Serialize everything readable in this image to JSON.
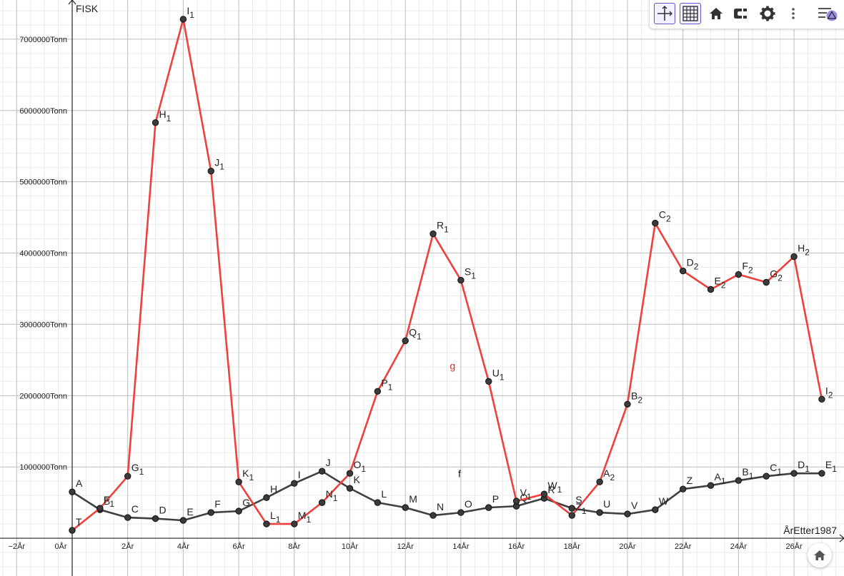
{
  "chart_data": {
    "type": "line",
    "xlabel": "ÅrEtter1987",
    "ylabel": "FISK",
    "xlim": [
      -2.6,
      27.8
    ],
    "ylim": [
      -530000,
      7550000
    ],
    "x_ticks": [
      -2,
      0,
      2,
      4,
      6,
      8,
      10,
      12,
      14,
      16,
      18,
      20,
      22,
      24,
      26
    ],
    "x_tick_labels": [
      "−2År",
      "0År",
      "2År",
      "4År",
      "6År",
      "8År",
      "10År",
      "12År",
      "14År",
      "16År",
      "18År",
      "20År",
      "22År",
      "24År",
      "26År"
    ],
    "y_ticks": [
      1000000,
      2000000,
      3000000,
      4000000,
      5000000,
      6000000,
      7000000
    ],
    "y_tick_labels": [
      "1000000Tonn",
      "2000000Tonn",
      "3000000Tonn",
      "4000000Tonn",
      "5000000Tonn",
      "6000000Tonn",
      "7000000Tonn"
    ],
    "grid": true,
    "series": [
      {
        "name": "f",
        "color": "#404040",
        "label_at": [
          13.9,
          855000
        ],
        "points": [
          {
            "label": "A",
            "sub": "",
            "x": 0,
            "y": 650000
          },
          {
            "label": "B",
            "sub": "",
            "x": 1,
            "y": 400000
          },
          {
            "label": "C",
            "sub": "",
            "x": 2,
            "y": 290000
          },
          {
            "label": "D",
            "sub": "",
            "x": 3,
            "y": 275000
          },
          {
            "label": "E",
            "sub": "",
            "x": 4,
            "y": 250000
          },
          {
            "label": "F",
            "sub": "",
            "x": 5,
            "y": 360000
          },
          {
            "label": "G",
            "sub": "",
            "x": 6,
            "y": 380000
          },
          {
            "label": "H",
            "sub": "",
            "x": 7,
            "y": 570000
          },
          {
            "label": "I",
            "sub": "",
            "x": 8,
            "y": 770000
          },
          {
            "label": "J",
            "sub": "",
            "x": 9,
            "y": 940000
          },
          {
            "label": "K",
            "sub": "",
            "x": 10,
            "y": 700000
          },
          {
            "label": "L",
            "sub": "",
            "x": 11,
            "y": 500000
          },
          {
            "label": "M",
            "sub": "",
            "x": 12,
            "y": 430000
          },
          {
            "label": "N",
            "sub": "",
            "x": 13,
            "y": 320000
          },
          {
            "label": "O",
            "sub": "",
            "x": 14,
            "y": 360000
          },
          {
            "label": "P",
            "sub": "",
            "x": 15,
            "y": 430000
          },
          {
            "label": "Q",
            "sub": "",
            "x": 16,
            "y": 450000
          },
          {
            "label": "R",
            "sub": "",
            "x": 17,
            "y": 560000
          },
          {
            "label": "S",
            "sub": "",
            "x": 18,
            "y": 420000
          },
          {
            "label": "U",
            "sub": "",
            "x": 19,
            "y": 360000
          },
          {
            "label": "V",
            "sub": "",
            "x": 20,
            "y": 340000
          },
          {
            "label": "W",
            "sub": "",
            "x": 21,
            "y": 400000
          },
          {
            "label": "Z",
            "sub": "",
            "x": 22,
            "y": 690000
          },
          {
            "label": "A",
            "sub": "1",
            "x": 23,
            "y": 740000
          },
          {
            "label": "B",
            "sub": "1",
            "x": 24,
            "y": 810000
          },
          {
            "label": "C",
            "sub": "1",
            "x": 25,
            "y": 870000
          },
          {
            "label": "D",
            "sub": "1",
            "x": 26,
            "y": 910000
          },
          {
            "label": "E",
            "sub": "1",
            "x": 27,
            "y": 910000
          }
        ]
      },
      {
        "name": "g",
        "color": "#f0403c",
        "label_at": [
          13.6,
          2370000
        ],
        "points": [
          {
            "label": "T",
            "sub": "",
            "x": 0,
            "y": 110000
          },
          {
            "label": "F",
            "sub": "1",
            "x": 1,
            "y": 420000
          },
          {
            "label": "G",
            "sub": "1",
            "x": 2,
            "y": 870000
          },
          {
            "label": "H",
            "sub": "1",
            "x": 3,
            "y": 5830000
          },
          {
            "label": "I",
            "sub": "1",
            "x": 4,
            "y": 7280000
          },
          {
            "label": "J",
            "sub": "1",
            "x": 5,
            "y": 5150000
          },
          {
            "label": "K",
            "sub": "1",
            "x": 6,
            "y": 790000
          },
          {
            "label": "L",
            "sub": "1",
            "x": 7,
            "y": 200000
          },
          {
            "label": "M",
            "sub": "1",
            "x": 8,
            "y": 200000
          },
          {
            "label": "N",
            "sub": "1",
            "x": 9,
            "y": 500000
          },
          {
            "label": "O",
            "sub": "1",
            "x": 10,
            "y": 910000
          },
          {
            "label": "P",
            "sub": "1",
            "x": 11,
            "y": 2060000
          },
          {
            "label": "Q",
            "sub": "1",
            "x": 12,
            "y": 2770000
          },
          {
            "label": "R",
            "sub": "1",
            "x": 13,
            "y": 4270000
          },
          {
            "label": "S",
            "sub": "1",
            "x": 14,
            "y": 3620000
          },
          {
            "label": "U",
            "sub": "1",
            "x": 15,
            "y": 2200000
          },
          {
            "label": "V",
            "sub": "1",
            "x": 16,
            "y": 520000
          },
          {
            "label": "W",
            "sub": "1",
            "x": 17,
            "y": 620000
          },
          {
            "label": "Z",
            "sub": "1",
            "x": 18,
            "y": 320000
          },
          {
            "label": "A",
            "sub": "2",
            "x": 19,
            "y": 790000
          },
          {
            "label": "B",
            "sub": "2",
            "x": 20,
            "y": 1880000
          },
          {
            "label": "C",
            "sub": "2",
            "x": 21,
            "y": 4420000
          },
          {
            "label": "D",
            "sub": "2",
            "x": 22,
            "y": 3750000
          },
          {
            "label": "E",
            "sub": "2",
            "x": 23,
            "y": 3490000
          },
          {
            "label": "F",
            "sub": "2",
            "x": 24,
            "y": 3700000
          },
          {
            "label": "G",
            "sub": "2",
            "x": 25,
            "y": 3590000
          },
          {
            "label": "H",
            "sub": "2",
            "x": 26,
            "y": 3950000
          },
          {
            "label": "I",
            "sub": "2",
            "x": 27,
            "y": 1950000
          }
        ]
      }
    ]
  },
  "toolbar": {
    "buttons": [
      {
        "name": "axes-toggle-icon",
        "active": true
      },
      {
        "name": "grid-toggle-icon",
        "active": true
      },
      {
        "name": "home-icon",
        "active": false
      },
      {
        "name": "magnet-icon",
        "active": false
      },
      {
        "name": "gear-icon",
        "active": false
      },
      {
        "name": "more-vert-icon",
        "active": false
      },
      {
        "name": "algebra-view-icon",
        "active": false
      }
    ]
  },
  "colors": {
    "accent": "#6557d2",
    "major_grid": "#c0c0c0",
    "minor_grid": "#ebebeb",
    "axis": "#252525",
    "point_fill": "#3b3b3b"
  }
}
